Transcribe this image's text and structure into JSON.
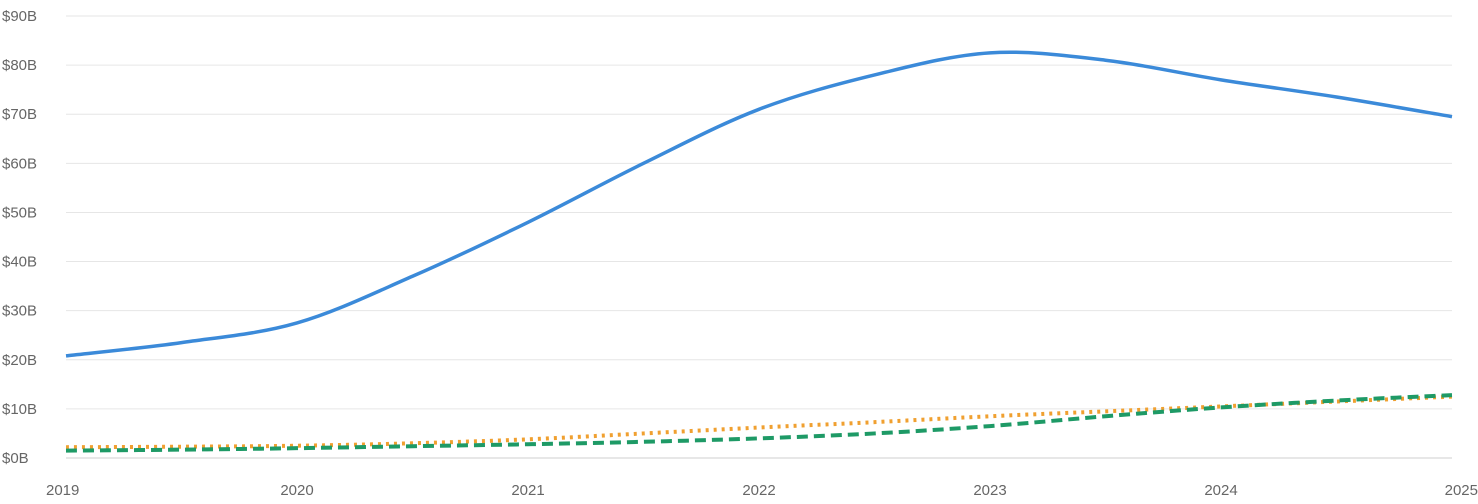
{
  "chart_data": {
    "type": "line",
    "title": "",
    "xlabel": "",
    "ylabel": "",
    "x": [
      2019,
      2019.5,
      2020,
      2020.5,
      2021,
      2021.5,
      2022,
      2022.5,
      2023,
      2023.5,
      2024,
      2024.5,
      2025
    ],
    "xlim": [
      2019,
      2025
    ],
    "ylim": [
      0,
      90
    ],
    "x_ticks": [
      "2019",
      "2020",
      "2021",
      "2022",
      "2023",
      "2024",
      "2025"
    ],
    "y_ticks": [
      "$0B",
      "$10B",
      "$20B",
      "$30B",
      "$40B",
      "$50B",
      "$60B",
      "$70B",
      "$80B",
      "$90B"
    ],
    "grid": true,
    "legend": "none",
    "series": [
      {
        "style": "solid",
        "color": "#3b8ad9",
        "values": [
          20.8,
          23.5,
          27.5,
          37,
          48,
          60,
          71,
          78,
          82.5,
          81,
          77,
          73.5,
          69.5
        ]
      },
      {
        "style": "dotted",
        "color": "#f0a030",
        "values": [
          2.2,
          2.3,
          2.5,
          3,
          3.8,
          5,
          6.2,
          7.3,
          8.5,
          9.5,
          10.5,
          11.5,
          12.5
        ]
      },
      {
        "style": "dashed",
        "color": "#1e9a66",
        "values": [
          1.5,
          1.7,
          2,
          2.4,
          2.8,
          3.3,
          4,
          5,
          6.5,
          8.5,
          10.3,
          11.7,
          12.8
        ]
      }
    ]
  }
}
